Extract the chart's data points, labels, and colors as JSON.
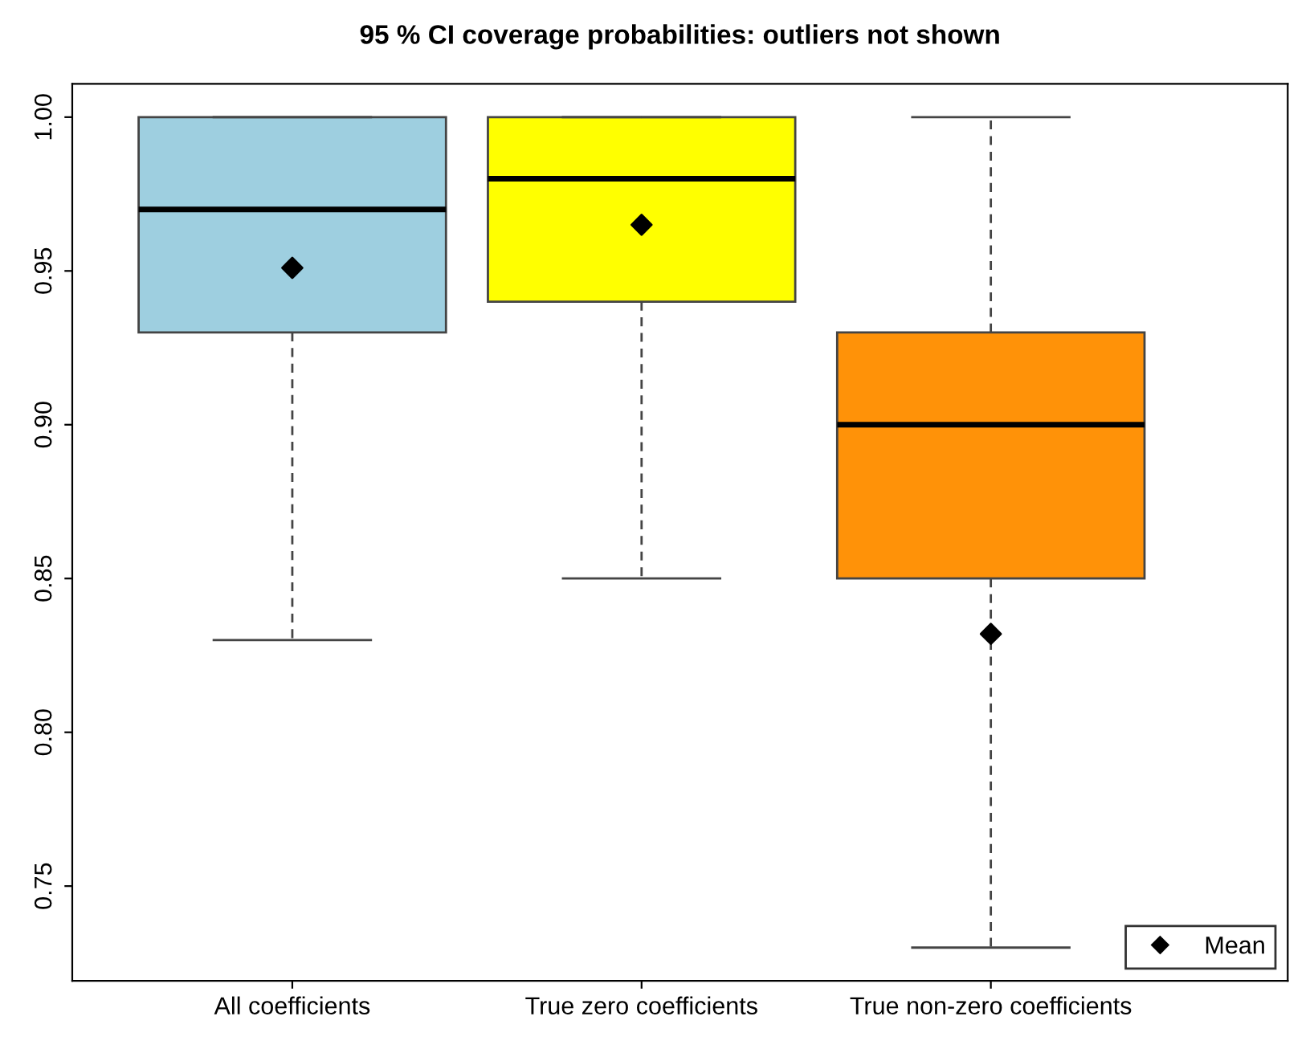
{
  "chart_data": {
    "type": "box",
    "title": "95 % CI coverage probabilities: outliers not shown",
    "categories": [
      "All coefficients",
      "True zero coefficients",
      "True non-zero coefficients"
    ],
    "colors": [
      "#9ecfe0",
      "#ffff00",
      "#ff9208"
    ],
    "boxes": [
      {
        "low": 0.83,
        "q1": 0.93,
        "median": 0.97,
        "q3": 1.0,
        "high": 1.0
      },
      {
        "low": 0.85,
        "q1": 0.94,
        "median": 0.98,
        "q3": 1.0,
        "high": 1.0
      },
      {
        "low": 0.73,
        "q1": 0.85,
        "median": 0.9,
        "q3": 0.93,
        "high": 1.0
      }
    ],
    "series": [
      {
        "name": "Mean",
        "type": "scatter",
        "color": "#000000",
        "marker": "diamond",
        "x": [
          "All coefficients",
          "True zero coefficients",
          "True non-zero coefficients"
        ],
        "values": [
          0.951,
          0.965,
          0.832
        ]
      }
    ],
    "ylim": [
      0.7192,
      1.0108
    ],
    "yticks": [
      {
        "value": 0.75,
        "label": "0.75"
      },
      {
        "value": 0.8,
        "label": "0.80"
      },
      {
        "value": 0.85,
        "label": "0.85"
      },
      {
        "value": 0.9,
        "label": "0.90"
      },
      {
        "value": 0.95,
        "label": "0.95"
      },
      {
        "value": 1.0,
        "label": "1.00"
      }
    ],
    "grid": false,
    "legend": "bottom right"
  }
}
